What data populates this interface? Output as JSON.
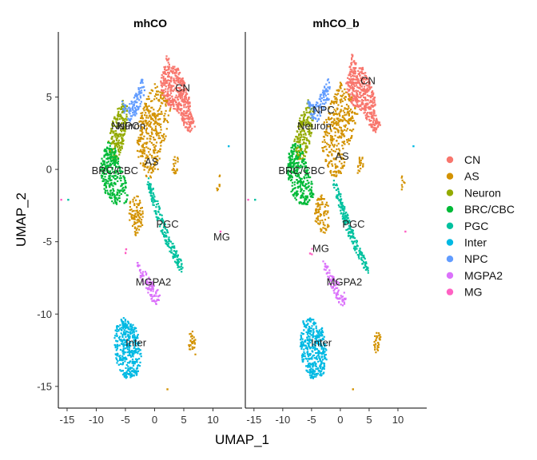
{
  "chart_data": {
    "type": "scatter",
    "xlabel": "UMAP_1",
    "ylabel": "UMAP_2",
    "xlim": [
      -16.5,
      15
    ],
    "ylim": [
      -16.5,
      9.5
    ],
    "x_ticks": [
      -15,
      -10,
      -5,
      0,
      5,
      10
    ],
    "y_ticks": [
      5,
      0,
      -5,
      -10,
      -15
    ],
    "x_tick_labels": [
      "-15",
      "-10",
      "-5",
      "0",
      "5",
      "10"
    ],
    "y_tick_labels": [
      "5",
      "0",
      "-5",
      "-10",
      "-15"
    ],
    "facets": [
      "mhCO",
      "mhCO_b"
    ],
    "grid": false,
    "legend_position": "right",
    "clusters": [
      {
        "name": "CN",
        "color": "#F8766D"
      },
      {
        "name": "AS",
        "color": "#D39200"
      },
      {
        "name": "Neuron",
        "color": "#93AA00"
      },
      {
        "name": "BRC/CBC",
        "color": "#00BA38"
      },
      {
        "name": "PGC",
        "color": "#00C19F"
      },
      {
        "name": "Inter",
        "color": "#00B9E3"
      },
      {
        "name": "NPC",
        "color": "#619CFF"
      },
      {
        "name": "MGPA2",
        "color": "#DB72FB"
      },
      {
        "name": "MG",
        "color": "#FF61C3"
      }
    ],
    "cluster_shapes": [
      {
        "cluster": "CN",
        "pts": [
          [
            1,
            6
          ],
          [
            2,
            8
          ],
          [
            3,
            7.2
          ],
          [
            4,
            7
          ],
          [
            5,
            6.2
          ],
          [
            6,
            5
          ],
          [
            6.2,
            4
          ],
          [
            7,
            3
          ],
          [
            6,
            2.5
          ],
          [
            5,
            3
          ],
          [
            4,
            4
          ],
          [
            3,
            4.2
          ],
          [
            2,
            4.5
          ],
          [
            1.2,
            5.2
          ]
        ],
        "n": 900
      },
      {
        "cluster": "AS",
        "pts": [
          [
            -3,
            3
          ],
          [
            -2,
            4.3
          ],
          [
            0,
            6
          ],
          [
            2,
            5
          ],
          [
            3,
            3.8
          ],
          [
            2.2,
            2.5
          ],
          [
            1,
            1.2
          ],
          [
            0.5,
            -0.3
          ],
          [
            -1.2,
            -0.7
          ],
          [
            -2.5,
            0.5
          ],
          [
            -3.2,
            1.5
          ]
        ],
        "n": 700
      },
      {
        "cluster": "AS",
        "pts": [
          [
            -4.2,
            -2.2
          ],
          [
            -3,
            -1.6
          ],
          [
            -2,
            -2.6
          ],
          [
            -2,
            -4.2
          ],
          [
            -3.2,
            -4.6
          ],
          [
            -4.5,
            -3.4
          ]
        ],
        "n": 180
      },
      {
        "cluster": "AS",
        "pts": [
          [
            3,
            1
          ],
          [
            4,
            0.8
          ],
          [
            4.1,
            -0.2
          ],
          [
            3,
            -0.4
          ]
        ],
        "n": 40
      },
      {
        "cluster": "AS",
        "pts": [
          [
            6,
            -11
          ],
          [
            7,
            -11.3
          ],
          [
            7,
            -12.8
          ],
          [
            5.8,
            -12.6
          ]
        ],
        "n": 60
      },
      {
        "cluster": "AS",
        "pts": [
          [
            10.6,
            -0.3
          ],
          [
            11.3,
            -0.4
          ],
          [
            11.2,
            -1.6
          ],
          [
            10.6,
            -1.4
          ]
        ],
        "n": 15
      },
      {
        "cluster": "Neuron",
        "pts": [
          [
            -8,
            2
          ],
          [
            -7,
            3.6
          ],
          [
            -5.6,
            4.8
          ],
          [
            -4.6,
            4.5
          ],
          [
            -4.8,
            3
          ],
          [
            -5.5,
            1.5
          ],
          [
            -6.5,
            0.5
          ],
          [
            -7.6,
            0.8
          ]
        ],
        "n": 400
      },
      {
        "cluster": "BRC/CBC",
        "pts": [
          [
            -9,
            1
          ],
          [
            -8,
            2
          ],
          [
            -6.8,
            1.6
          ],
          [
            -6,
            0.5
          ],
          [
            -4.8,
            -1
          ],
          [
            -4.5,
            -2.2
          ],
          [
            -5.8,
            -2.5
          ],
          [
            -7.2,
            -2.4
          ],
          [
            -8.5,
            -1.6
          ],
          [
            -9.3,
            -0.2
          ]
        ],
        "n": 600
      },
      {
        "cluster": "PGC",
        "pts": [
          [
            -1,
            -0.5
          ],
          [
            0,
            -1.5
          ],
          [
            1,
            -2.8
          ],
          [
            2,
            -4
          ],
          [
            3,
            -5
          ],
          [
            4.5,
            -6.2
          ],
          [
            5,
            -7.2
          ],
          [
            4.2,
            -7
          ],
          [
            3.5,
            -6.4
          ],
          [
            2,
            -5.2
          ],
          [
            0.8,
            -4
          ],
          [
            -0.3,
            -2.5
          ],
          [
            -1.3,
            -1
          ]
        ],
        "n": 380
      },
      {
        "cluster": "Inter",
        "pts": [
          [
            -6.5,
            -10.5
          ],
          [
            -5,
            -10.2
          ],
          [
            -3,
            -11
          ],
          [
            -2.2,
            -13
          ],
          [
            -2.8,
            -14.2
          ],
          [
            -5,
            -14.5
          ],
          [
            -6.5,
            -13.5
          ],
          [
            -7,
            -12
          ]
        ],
        "n": 750
      },
      {
        "cluster": "NPC",
        "pts": [
          [
            -5.8,
            4.8
          ],
          [
            -4.5,
            4.4
          ],
          [
            -3,
            5.5
          ],
          [
            -2,
            6.4
          ],
          [
            -1.6,
            5.2
          ],
          [
            -2.8,
            4
          ],
          [
            -4,
            3.3
          ],
          [
            -5,
            3.5
          ]
        ],
        "n": 220
      },
      {
        "cluster": "MGPA2",
        "pts": [
          [
            -3,
            -6.3
          ],
          [
            -2,
            -6.8
          ],
          [
            0,
            -8
          ],
          [
            1,
            -8.6
          ],
          [
            0.8,
            -9.6
          ],
          [
            -0.3,
            -9.2
          ],
          [
            -1.8,
            -8
          ],
          [
            -2.8,
            -7.2
          ]
        ],
        "n": 180
      },
      {
        "cluster": "MG",
        "pts": [
          [
            -5.3,
            -5.3
          ],
          [
            -4.8,
            -5.2
          ],
          [
            -4.9,
            -5.9
          ],
          [
            -5.4,
            -5.8
          ]
        ],
        "n": 8
      }
    ],
    "panels": [
      {
        "facet": "mhCO",
        "labels": [
          {
            "text": "CN",
            "x": 4.8,
            "y": 5.6
          },
          {
            "text": "NPC",
            "x": -4.5,
            "y": 3.0
          },
          {
            "text": "Neuron",
            "x": -4.5,
            "y": 3.0
          },
          {
            "text": "AS",
            "x": -0.5,
            "y": 0.5
          },
          {
            "text": "BRC/CBC",
            "x": -6.8,
            "y": -0.1
          },
          {
            "text": "PGC",
            "x": 2.2,
            "y": -3.8
          },
          {
            "text": "MG",
            "x": 11.5,
            "y": -4.7
          },
          {
            "text": "MGPA2",
            "x": -0.2,
            "y": -7.8
          },
          {
            "text": "Inter",
            "x": -3.2,
            "y": -12.0
          }
        ]
      },
      {
        "facet": "mhCO_b",
        "labels": [
          {
            "text": "CN",
            "x": 4.8,
            "y": 6.1
          },
          {
            "text": "NPC",
            "x": -2.9,
            "y": 4.1
          },
          {
            "text": "Neuron",
            "x": -4.5,
            "y": 3.0
          },
          {
            "text": "AS",
            "x": 0.3,
            "y": 0.9
          },
          {
            "text": "BRC/CBC",
            "x": -6.7,
            "y": -0.1
          },
          {
            "text": "PGC",
            "x": 2.3,
            "y": -3.8
          },
          {
            "text": "MG",
            "x": -3.4,
            "y": -5.5
          },
          {
            "text": "MGPA2",
            "x": 0.7,
            "y": -7.8
          },
          {
            "text": "Inter",
            "x": -3.3,
            "y": -12.0
          }
        ]
      }
    ],
    "outlier_points": [
      {
        "cluster": "Inter",
        "x": 12.7,
        "y": 1.6
      },
      {
        "cluster": "MG",
        "x": -16,
        "y": -2.1
      },
      {
        "cluster": "PGC",
        "x": -14.8,
        "y": -2.1
      },
      {
        "cluster": "MG",
        "x": 11.3,
        "y": -4.3
      },
      {
        "cluster": "AS",
        "x": 2.2,
        "y": -15.2
      }
    ]
  }
}
